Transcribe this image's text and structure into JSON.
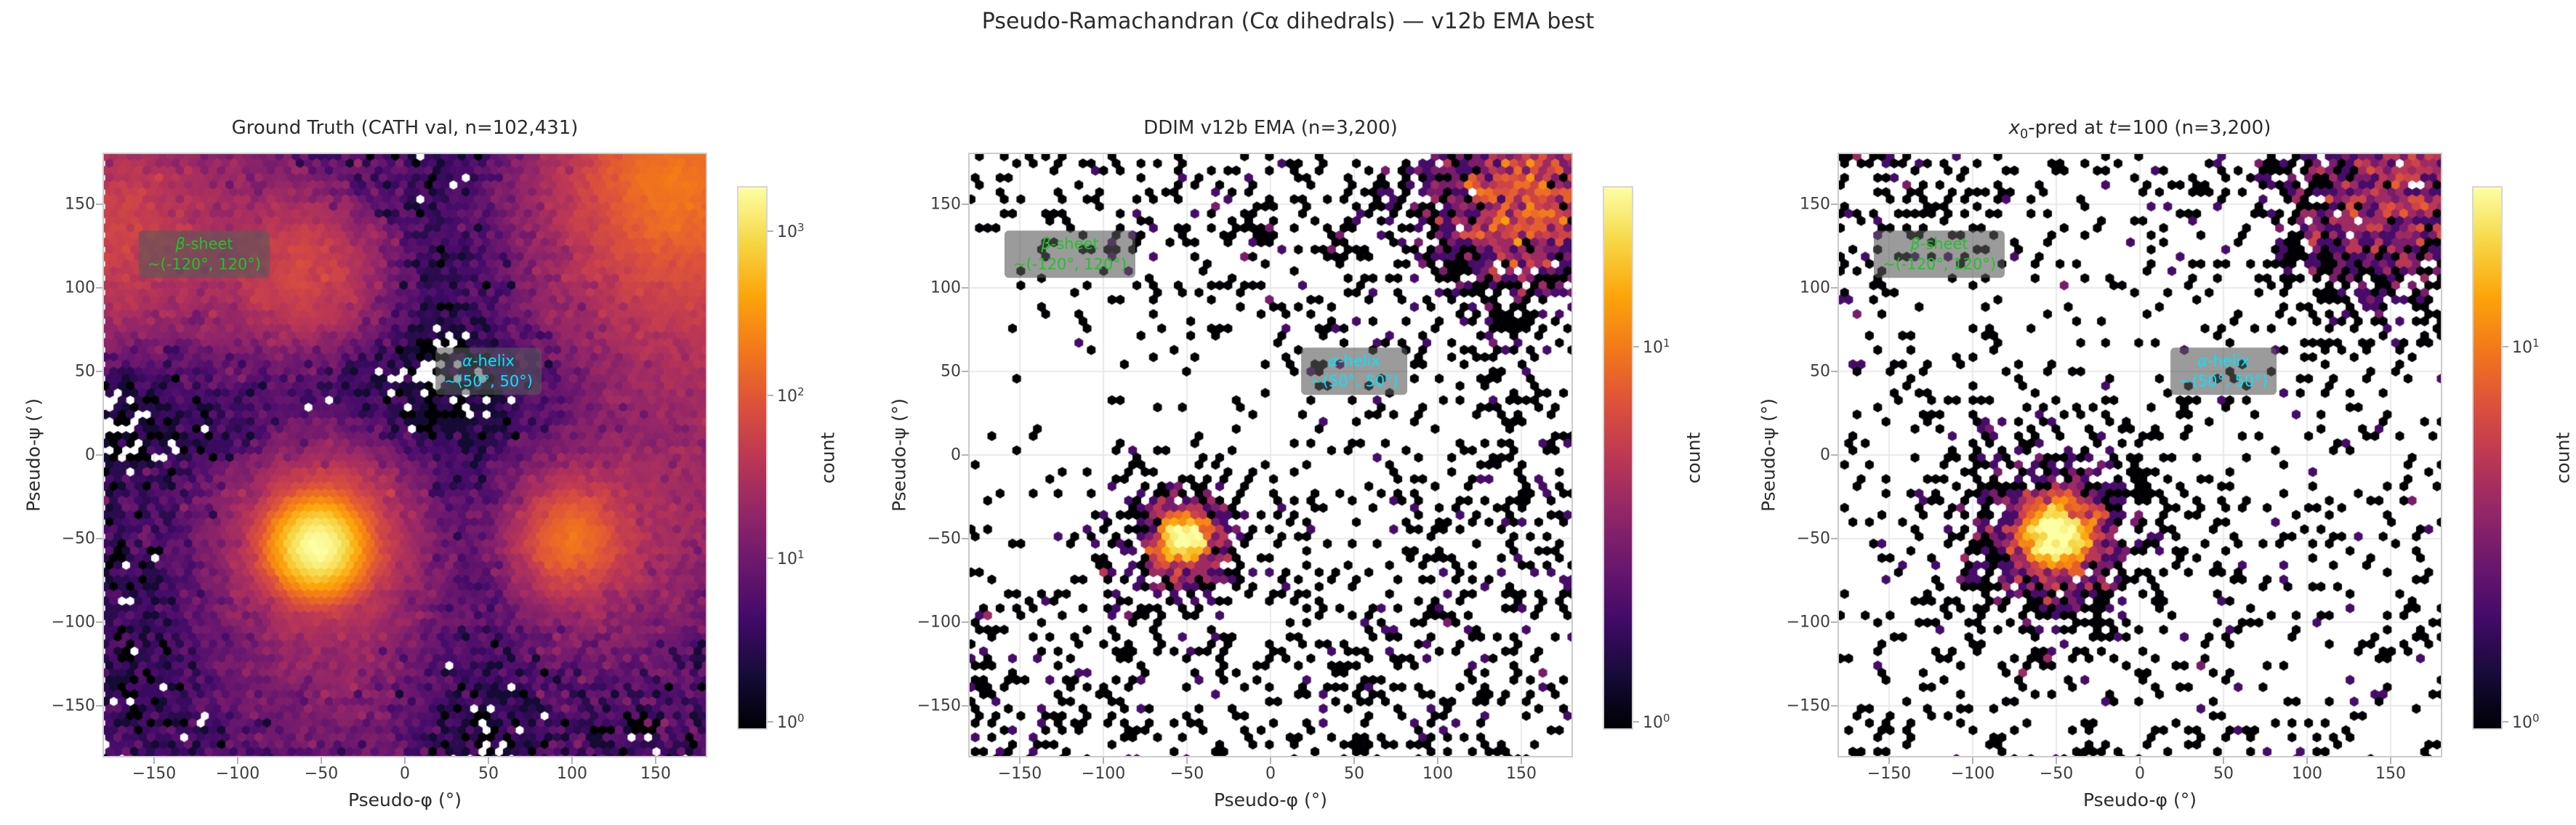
{
  "figure": {
    "suptitle": "Pseudo-Ramachandran (Cα dihedrals) — v12b EMA best",
    "background": "#ffffff",
    "text_color": "#2b2b2b",
    "grid_color": "#e9e9e9",
    "spine_color": "#cbcbcb",
    "tick_color": "#b3b3b3",
    "annotation_box_color": "rgba(88,88,88,0.60)",
    "colormap": "inferno",
    "inferno_stops": [
      [
        0.0,
        "#000004"
      ],
      [
        0.1,
        "#160b39"
      ],
      [
        0.2,
        "#420a68"
      ],
      [
        0.3,
        "#6a176e"
      ],
      [
        0.4,
        "#932667"
      ],
      [
        0.5,
        "#bc3754"
      ],
      [
        0.6,
        "#dd513a"
      ],
      [
        0.7,
        "#f37819"
      ],
      [
        0.8,
        "#fca50a"
      ],
      [
        0.9,
        "#f6d746"
      ],
      [
        1.0,
        "#fcffa4"
      ]
    ]
  },
  "chart_data": [
    {
      "type": "hexbin",
      "title": "Ground Truth (CATH val, n=102,431)",
      "n": 102431,
      "xlabel": "Pseudo-φ (°)",
      "ylabel": "Pseudo-ψ (°)",
      "xlim": [
        -180,
        180
      ],
      "ylim": [
        -180,
        180
      ],
      "xticks": [
        -150,
        -100,
        -50,
        0,
        50,
        100,
        150
      ],
      "yticks": [
        150,
        100,
        50,
        0,
        -50,
        -100,
        -150
      ],
      "scale": "log",
      "colorbar": {
        "label": "count",
        "ticks": [
          {
            "base": "10",
            "exp": "3",
            "frac": 0.081
          },
          {
            "base": "10",
            "exp": "2",
            "frac": 0.384
          },
          {
            "base": "10",
            "exp": "1",
            "frac": 0.686
          },
          {
            "base": "10",
            "exp": "0",
            "frac": 0.988
          }
        ]
      },
      "annotations": [
        {
          "line1": "β-sheet",
          "line2": "~(-120°, 120°)",
          "x": -120,
          "y": 120,
          "color": "#1fc426"
        },
        {
          "line1": "α-helix",
          "line2": "~(50°, 50°)",
          "x": 50,
          "y": 50,
          "color": "#00e5ff"
        }
      ],
      "density_model": {
        "seed": 11,
        "kind": "dense",
        "base": 4.0,
        "speckle": 1.0,
        "vmax_log10": 3.3,
        "hotspots": [
          {
            "x": -52,
            "y": -55,
            "sigma": 13,
            "amp": 1900
          },
          {
            "x": -48,
            "y": -48,
            "sigma": 26,
            "amp": 90
          },
          {
            "x": -50,
            "y": -60,
            "sigma": 45,
            "amp": 22
          },
          {
            "x": -52,
            "y": -135,
            "sigma": 55,
            "amp": 9
          },
          {
            "x": 100,
            "y": -50,
            "sigma": 16,
            "amp": 150
          },
          {
            "x": 108,
            "y": -52,
            "sigma": 38,
            "amp": 28
          },
          {
            "x": -58,
            "y": 108,
            "sigma": 24,
            "amp": 55
          },
          {
            "x": -100,
            "y": 118,
            "sigma": 45,
            "amp": 18
          },
          {
            "x": 162,
            "y": 165,
            "sigma": 32,
            "amp": 150
          },
          {
            "x": 150,
            "y": 150,
            "sigma": 60,
            "amp": 30
          },
          {
            "x": -178,
            "y": 125,
            "sigma": 32,
            "amp": 45
          },
          {
            "x": -178,
            "y": 178,
            "sigma": 45,
            "amp": 20
          },
          {
            "x": 180,
            "y": 95,
            "sigma": 45,
            "amp": 30
          },
          {
            "x": 180,
            "y": -15,
            "sigma": 50,
            "amp": 16
          }
        ],
        "bands": [
          {
            "axis": "y",
            "center": 28,
            "halfwidth": 40,
            "suppress": 0.93
          },
          {
            "axis": "x",
            "center": 38,
            "halfwidth": 36,
            "suppress": 0.93
          }
        ],
        "void_blobs": [
          {
            "x": -130,
            "y": -100,
            "sigma": 45,
            "suppress": 0.8
          },
          {
            "x": -100,
            "y": -150,
            "sigma": 45,
            "suppress": 0.8
          }
        ]
      }
    },
    {
      "type": "hexbin",
      "title": "DDIM v12b EMA (n=3,200)",
      "n": 3200,
      "xlabel": "Pseudo-φ (°)",
      "ylabel": "Pseudo-ψ (°)",
      "xlim": [
        -180,
        180
      ],
      "ylim": [
        -180,
        180
      ],
      "xticks": [
        -150,
        -100,
        -50,
        0,
        50,
        100,
        150
      ],
      "yticks": [
        150,
        100,
        50,
        0,
        -50,
        -100,
        -150
      ],
      "scale": "log",
      "colorbar": {
        "label": "count",
        "ticks": [
          {
            "base": "10",
            "exp": "1",
            "frac": 0.295
          },
          {
            "base": "10",
            "exp": "0",
            "frac": 0.988
          }
        ]
      },
      "annotations": [
        {
          "line1": "β-sheet",
          "line2": "~(-120°, 120°)",
          "x": -120,
          "y": 120,
          "color": "#1fc426"
        },
        {
          "line1": "α-helix",
          "line2": "~(50°, 50°)",
          "x": 50,
          "y": 50,
          "color": "#00e5ff"
        }
      ],
      "density_model": {
        "seed": 23,
        "kind": "sparse",
        "base": 0.08,
        "speckle": 1.1,
        "vmax_log10": 1.42,
        "hotspots": [
          {
            "x": -52,
            "y": -50,
            "sigma": 8.5,
            "amp": 26
          },
          {
            "x": -52,
            "y": -50,
            "sigma": 17,
            "amp": 4.5
          },
          {
            "x": -55,
            "y": -75,
            "sigma": 30,
            "amp": 0.5
          },
          {
            "x": 150,
            "y": 153,
            "sigma": 26,
            "amp": 6.5
          },
          {
            "x": 170,
            "y": 170,
            "sigma": 45,
            "amp": 1.5
          },
          {
            "x": 120,
            "y": 120,
            "sigma": 60,
            "amp": 0.35
          },
          {
            "x": -40,
            "y": 170,
            "sigma": 60,
            "amp": 0.3
          },
          {
            "x": -170,
            "y": -165,
            "sigma": 45,
            "amp": 0.4
          },
          {
            "x": 60,
            "y": -170,
            "sigma": 70,
            "amp": 0.25
          },
          {
            "x": 170,
            "y": -40,
            "sigma": 60,
            "amp": 0.25
          }
        ],
        "bands": [
          {
            "axis": "y",
            "center": 60,
            "halfwidth": 50,
            "suppress": 0.55
          }
        ],
        "void_blobs": [
          {
            "x": -110,
            "y": 60,
            "sigma": 55,
            "suppress": 0.65
          },
          {
            "x": -150,
            "y": 20,
            "sigma": 40,
            "suppress": 0.5
          }
        ]
      }
    },
    {
      "type": "hexbin",
      "title": "x₀-pred at t=100 (n=3,200)",
      "title_segments": [
        {
          "text": "x",
          "italic": true
        },
        {
          "text": "0",
          "sub": true
        },
        {
          "text": "-pred at "
        },
        {
          "text": "t",
          "italic": true
        },
        {
          "text": "=100 (n=3,200)"
        }
      ],
      "n": 3200,
      "xlabel": "Pseudo-φ (°)",
      "ylabel": "Pseudo-ψ (°)",
      "xlim": [
        -180,
        180
      ],
      "ylim": [
        -180,
        180
      ],
      "xticks": [
        -150,
        -100,
        -50,
        0,
        50,
        100,
        150
      ],
      "yticks": [
        150,
        100,
        50,
        0,
        -50,
        -100,
        -150
      ],
      "scale": "log",
      "colorbar": {
        "label": "count",
        "ticks": [
          {
            "base": "10",
            "exp": "1",
            "frac": 0.295
          },
          {
            "base": "10",
            "exp": "0",
            "frac": 0.988
          }
        ]
      },
      "annotations": [
        {
          "line1": "β-sheet",
          "line2": "~(-120°, 120°)",
          "x": -120,
          "y": 120,
          "color": "#1fc426"
        },
        {
          "line1": "α-helix",
          "line2": "~(50°, 50°)",
          "x": 50,
          "y": 50,
          "color": "#00e5ff"
        }
      ],
      "density_model": {
        "seed": 37,
        "kind": "sparse",
        "base": 0.155,
        "speckle": 0.9,
        "vmax_log10": 1.42,
        "hotspots": [
          {
            "x": -50,
            "y": -48,
            "sigma": 11,
            "amp": 30
          },
          {
            "x": -50,
            "y": -48,
            "sigma": 22,
            "amp": 4.5
          },
          {
            "x": -50,
            "y": -48,
            "sigma": 35,
            "amp": 1.0
          },
          {
            "x": 148,
            "y": 152,
            "sigma": 30,
            "amp": 3.5
          },
          {
            "x": 170,
            "y": 170,
            "sigma": 55,
            "amp": 1.0
          },
          {
            "x": -165,
            "y": 160,
            "sigma": 50,
            "amp": 0.4
          }
        ],
        "bands": [
          {
            "axis": "y",
            "center": 60,
            "halfwidth": 45,
            "suppress": 0.35
          }
        ],
        "void_blobs": [
          {
            "x": -100,
            "y": 95,
            "sigma": 50,
            "suppress": 0.45
          }
        ]
      }
    }
  ]
}
